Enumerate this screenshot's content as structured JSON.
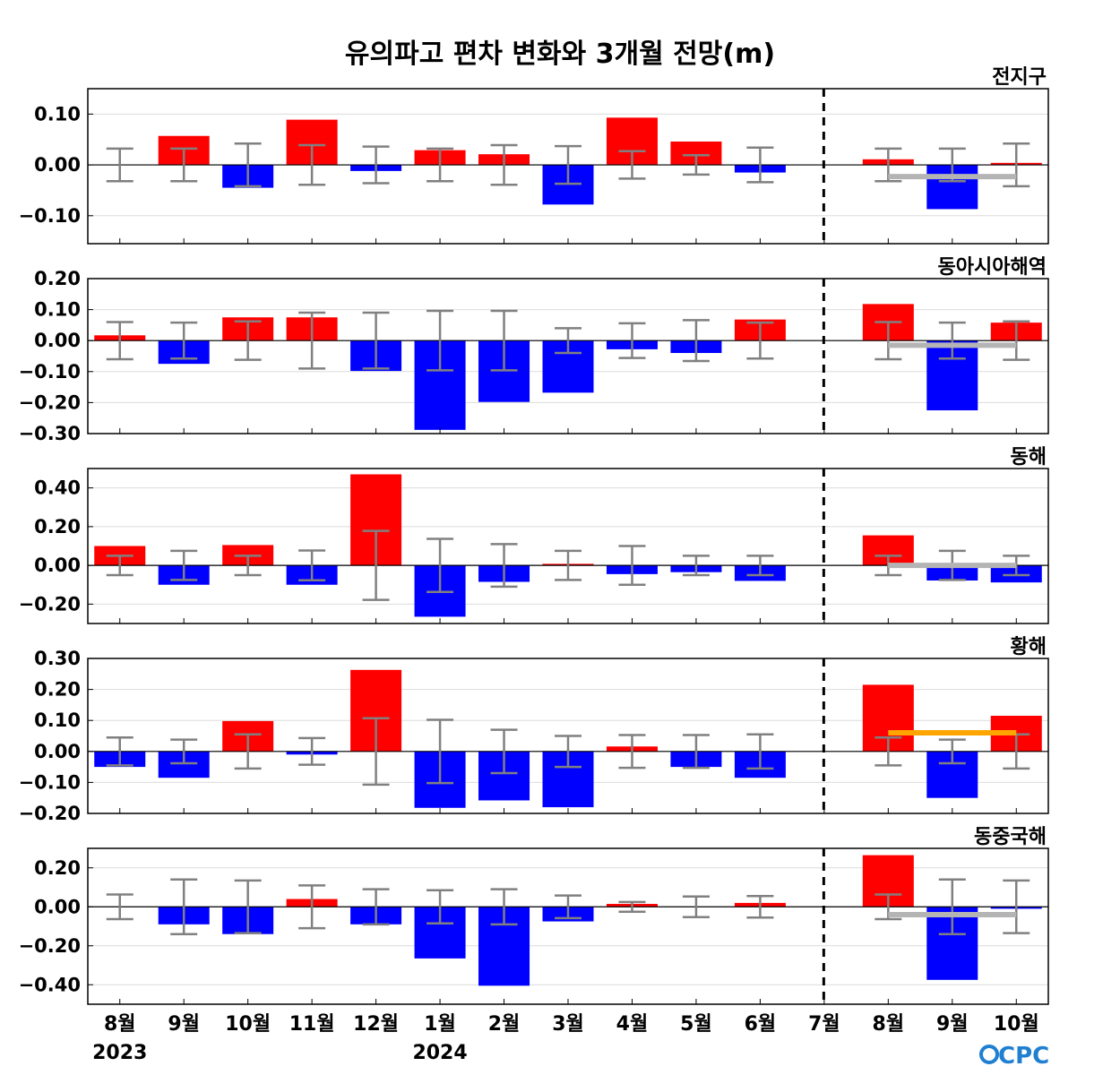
{
  "chart_data": {
    "type": "bar",
    "title": "유의파고 편차 변화와 3개월 전망(m)",
    "categories": [
      "8월",
      "9월",
      "10월",
      "11월",
      "12월",
      "1월",
      "2월",
      "3월",
      "4월",
      "5월",
      "6월",
      "7월",
      "8월",
      "9월",
      "10월"
    ],
    "year_labels": [
      {
        "index": 0,
        "label": "2023"
      },
      {
        "index": 5,
        "label": "2024"
      }
    ],
    "divider_after_category": "7월",
    "legend": "none",
    "grid": true,
    "colors": {
      "positive": "#ff0000",
      "negative": "#0000ff",
      "errorbar": "#808080",
      "outlook_neutral": "#b4b4b4",
      "outlook_positive": "#ffa500",
      "divider": "#000000"
    },
    "logo": "CPC",
    "panels": [
      {
        "name": "전지구",
        "ylim": [
          -0.155,
          0.15
        ],
        "yticks": [
          0.1,
          0.0,
          -0.1
        ],
        "ytick_labels": [
          "0.10",
          "0.00",
          "−0.10"
        ],
        "values": [
          0.0,
          0.057,
          -0.045,
          0.089,
          -0.012,
          0.029,
          0.021,
          -0.078,
          0.093,
          0.046,
          -0.015,
          0.0,
          0.011,
          -0.087,
          0.004
        ],
        "errors": [
          0.032,
          0.032,
          0.042,
          0.039,
          0.036,
          0.032,
          0.039,
          0.037,
          0.027,
          0.019,
          0.034,
          null,
          0.032,
          0.032,
          0.042
        ],
        "outlook": {
          "value": -0.023,
          "color": "gray"
        }
      },
      {
        "name": "동아시아해역",
        "ylim": [
          -0.3,
          0.2
        ],
        "yticks": [
          0.2,
          0.1,
          0.0,
          -0.1,
          -0.2,
          -0.3
        ],
        "ytick_labels": [
          "0.20",
          "0.10",
          "0.00",
          "−0.10",
          "−0.20",
          "−0.30"
        ],
        "values": [
          0.017,
          -0.075,
          0.075,
          0.075,
          -0.098,
          -0.288,
          -0.198,
          -0.168,
          -0.028,
          -0.04,
          0.068,
          0.0,
          0.118,
          -0.225,
          0.058
        ],
        "errors": [
          0.06,
          0.058,
          0.062,
          0.09,
          0.09,
          0.096,
          0.096,
          0.04,
          0.056,
          0.066,
          0.058,
          null,
          0.06,
          0.058,
          0.062
        ],
        "outlook": {
          "value": -0.015,
          "color": "gray"
        }
      },
      {
        "name": "동해",
        "ylim": [
          -0.3,
          0.5
        ],
        "yticks": [
          0.4,
          0.2,
          0.0,
          -0.2
        ],
        "ytick_labels": [
          "0.40",
          "0.20",
          "0.00",
          "−0.20"
        ],
        "values": [
          0.1,
          -0.1,
          0.105,
          -0.1,
          0.47,
          -0.265,
          -0.085,
          0.008,
          -0.045,
          -0.035,
          -0.08,
          0.0,
          0.155,
          -0.078,
          -0.088
        ],
        "errors": [
          0.05,
          0.075,
          0.05,
          0.077,
          0.178,
          0.137,
          0.11,
          0.075,
          0.1,
          0.05,
          0.05,
          null,
          0.05,
          0.075,
          0.05
        ],
        "outlook": {
          "value": 0.0,
          "color": "gray"
        }
      },
      {
        "name": "황해",
        "ylim": [
          -0.2,
          0.3
        ],
        "yticks": [
          0.3,
          0.2,
          0.1,
          0.0,
          -0.1,
          -0.2
        ],
        "ytick_labels": [
          "0.30",
          "0.20",
          "0.10",
          "0.00",
          "−0.10",
          "−0.20"
        ],
        "values": [
          -0.05,
          -0.085,
          0.098,
          -0.01,
          0.263,
          -0.182,
          -0.158,
          -0.18,
          0.016,
          -0.05,
          -0.085,
          0.0,
          0.215,
          -0.15,
          0.115
        ],
        "errors": [
          0.045,
          0.038,
          0.055,
          0.043,
          0.107,
          0.102,
          0.07,
          0.05,
          0.053,
          0.053,
          0.055,
          null,
          0.045,
          0.038,
          0.055
        ],
        "outlook": {
          "value": 0.06,
          "color": "orange"
        }
      },
      {
        "name": "동중국해",
        "ylim": [
          -0.5,
          0.3
        ],
        "yticks": [
          0.2,
          0.0,
          -0.2,
          -0.4
        ],
        "ytick_labels": [
          "0.20",
          "0.00",
          "−0.20",
          "−0.40"
        ],
        "values": [
          0.0,
          -0.09,
          -0.14,
          0.04,
          -0.09,
          -0.265,
          -0.405,
          -0.075,
          0.015,
          0.0,
          0.02,
          0.0,
          0.265,
          -0.375,
          -0.01
        ],
        "errors": [
          0.063,
          0.14,
          0.135,
          0.11,
          0.09,
          0.085,
          0.09,
          0.058,
          0.025,
          0.053,
          0.055,
          null,
          0.063,
          0.14,
          0.135
        ],
        "outlook": {
          "value": -0.04,
          "color": "gray"
        }
      }
    ]
  }
}
